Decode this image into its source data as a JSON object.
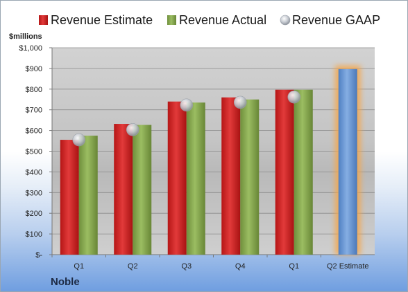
{
  "chart_data": {
    "type": "bar",
    "unit_label": "$millions",
    "categories": [
      "Q1",
      "Q2",
      "Q3",
      "Q4",
      "Q1",
      "Q2 Estimate"
    ],
    "series": [
      {
        "name": "Revenue Estimate",
        "color": "#d42a2a",
        "values": [
          555,
          632,
          740,
          760,
          797,
          null
        ]
      },
      {
        "name": "Revenue Actual",
        "color": "#86a851",
        "values": [
          575,
          627,
          735,
          750,
          797,
          null
        ]
      },
      {
        "name": "Revenue GAAP",
        "color": "#c8ccd4",
        "values": [
          555,
          604,
          723,
          736,
          762,
          null
        ]
      },
      {
        "name": "",
        "color": "#6b9ad6",
        "values": [
          null,
          null,
          null,
          null,
          null,
          897
        ]
      }
    ],
    "ylim": [
      0,
      1000
    ],
    "y_ticks": [
      0,
      100,
      200,
      300,
      400,
      500,
      600,
      700,
      800,
      900,
      1000
    ],
    "y_tick_labels": [
      "$-",
      "$100",
      "$200",
      "$300",
      "$400",
      "$500",
      "$600",
      "$700",
      "$800",
      "$900",
      "$1,000"
    ],
    "grid": true,
    "legend": "top",
    "highlight_color": "#f5a64a"
  },
  "company": "Noble"
}
